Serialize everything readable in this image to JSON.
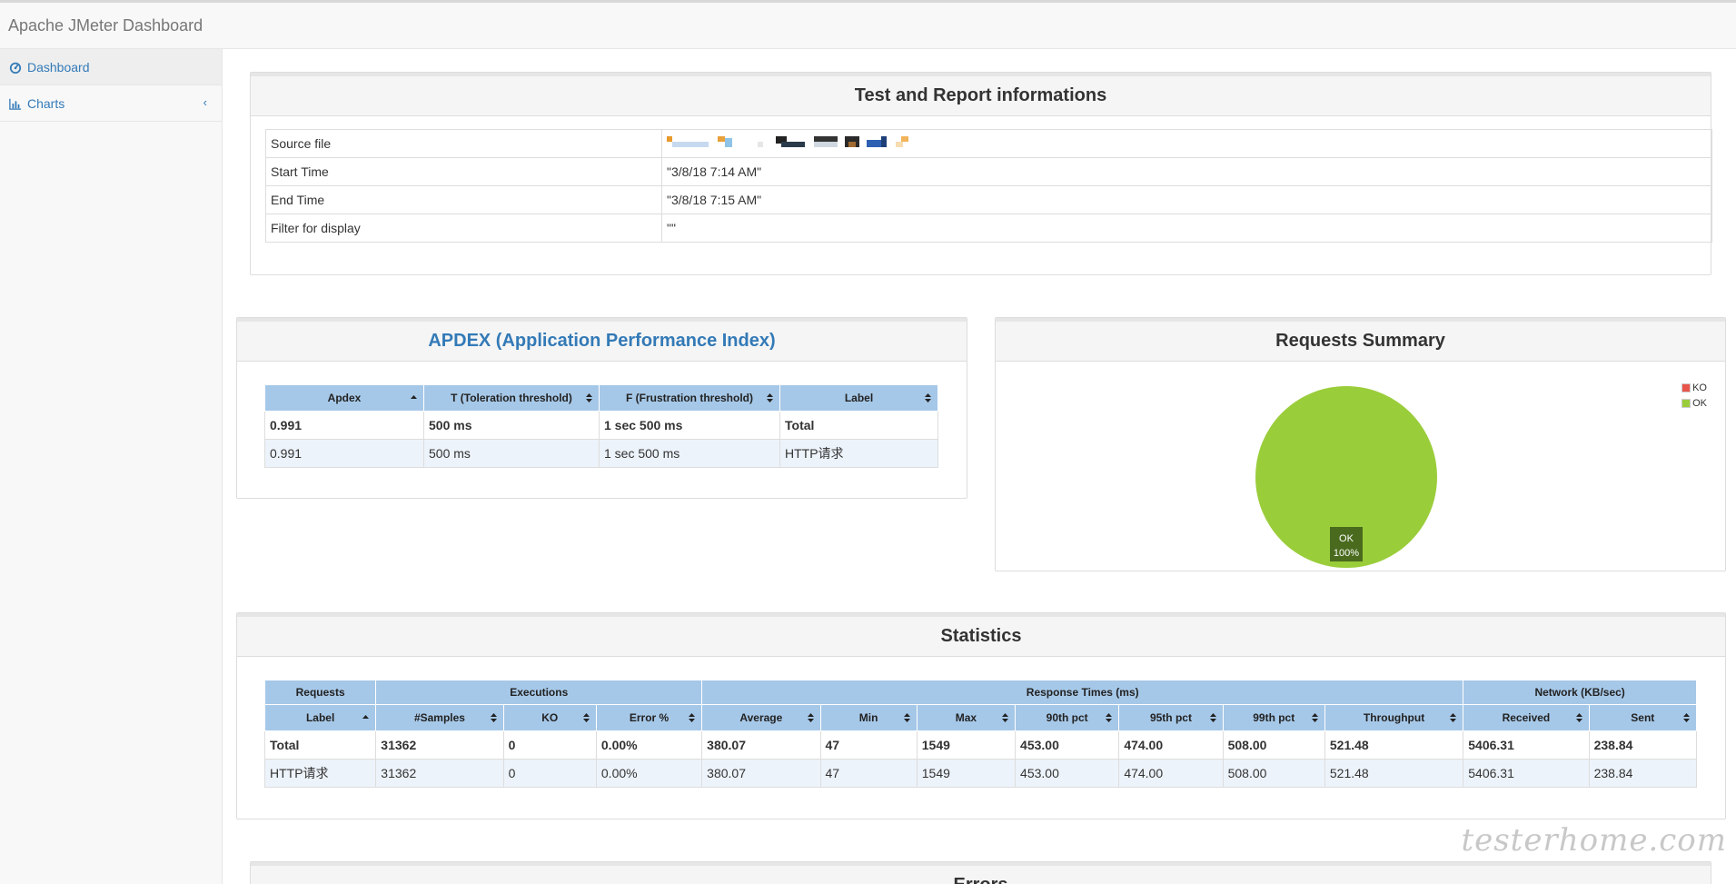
{
  "header": {
    "title": "Apache JMeter Dashboard"
  },
  "sidebar": {
    "items": [
      {
        "label": "Dashboard",
        "icon": "dashboard-icon"
      },
      {
        "label": "Charts",
        "icon": "bar-chart-icon"
      }
    ]
  },
  "report_info": {
    "title": "Test and Report informations",
    "rows": [
      {
        "label": "Source file",
        "value": ""
      },
      {
        "label": "Start Time",
        "value": "\"3/8/18 7:14 AM\""
      },
      {
        "label": "End Time",
        "value": "\"3/8/18 7:15 AM\""
      },
      {
        "label": "Filter for display",
        "value": "\"\""
      }
    ]
  },
  "apdex": {
    "title": "APDEX (Application Performance Index)",
    "columns": [
      "Apdex",
      "T (Toleration threshold)",
      "F (Frustration threshold)",
      "Label"
    ],
    "rows": [
      [
        "0.991",
        "500 ms",
        "1 sec 500 ms",
        "Total"
      ],
      [
        "0.991",
        "500 ms",
        "1 sec 500 ms",
        "HTTP请求"
      ]
    ]
  },
  "requests_summary": {
    "title": "Requests Summary",
    "legend": [
      {
        "name": "KO",
        "color": "#e9554a"
      },
      {
        "name": "OK",
        "color": "#9acd3a"
      }
    ],
    "slice_label": "OK",
    "slice_percent": "100%"
  },
  "chart_data": {
    "type": "pie",
    "categories": [
      "KO",
      "OK"
    ],
    "values": [
      0,
      100
    ],
    "colors": [
      "#e9554a",
      "#9acd3a"
    ],
    "title": "Requests Summary",
    "legend": "top-right"
  },
  "statistics": {
    "title": "Statistics",
    "groups": [
      {
        "label": "Requests",
        "span": 1
      },
      {
        "label": "Executions",
        "span": 3
      },
      {
        "label": "Response Times (ms)",
        "span": 7
      },
      {
        "label": "Network (KB/sec)",
        "span": 2
      }
    ],
    "columns": [
      "Label",
      "#Samples",
      "KO",
      "Error %",
      "Average",
      "Min",
      "Max",
      "90th pct",
      "95th pct",
      "99th pct",
      "Throughput",
      "Received",
      "Sent"
    ],
    "rows": [
      [
        "Total",
        "31362",
        "0",
        "0.00%",
        "380.07",
        "47",
        "1549",
        "453.00",
        "474.00",
        "508.00",
        "521.48",
        "5406.31",
        "238.84"
      ],
      [
        "HTTP请求",
        "31362",
        "0",
        "0.00%",
        "380.07",
        "47",
        "1549",
        "453.00",
        "474.00",
        "508.00",
        "521.48",
        "5406.31",
        "238.84"
      ]
    ]
  },
  "errors_panel": {
    "title": "Errors"
  },
  "watermark": "testerhome.com"
}
